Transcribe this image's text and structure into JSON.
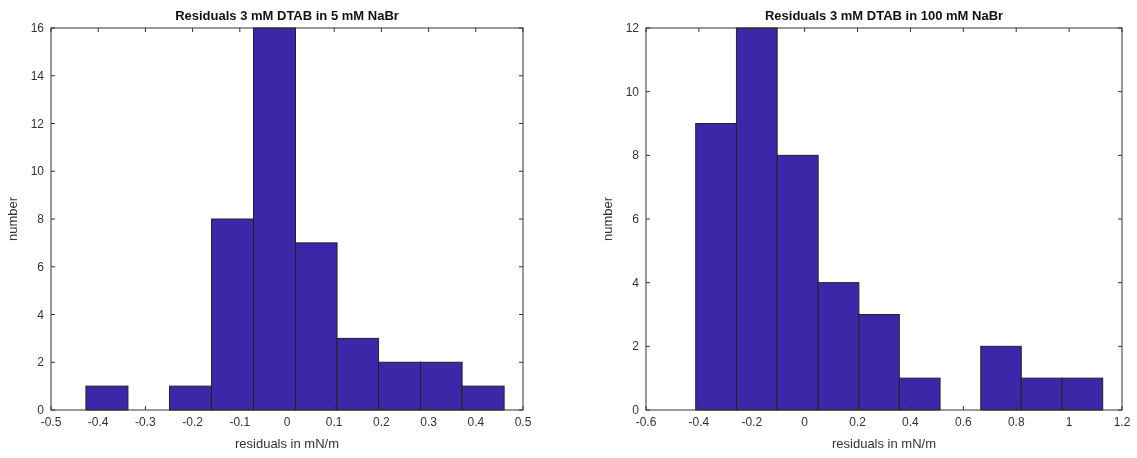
{
  "chart_data": [
    {
      "type": "histogram",
      "title": "Residuals 3 mM DTAB in 5 mM NaBr",
      "xlabel": "residuals in mN/m",
      "ylabel": "number",
      "color": "#3d27a8",
      "bins": [
        -0.426,
        -0.337,
        -0.249,
        -0.16,
        -0.071,
        0.018,
        0.106,
        0.194,
        0.283,
        0.371,
        0.46
      ],
      "values": [
        1,
        0,
        1,
        8,
        16,
        7,
        3,
        2,
        2,
        1
      ],
      "xlim": [
        -0.5,
        0.5
      ],
      "xticks": [
        -0.5,
        -0.4,
        -0.3,
        -0.2,
        -0.1,
        0,
        0.1,
        0.2,
        0.3,
        0.4,
        0.5
      ],
      "ylim": [
        0,
        16
      ],
      "yticks": [
        0,
        2,
        4,
        6,
        8,
        10,
        12,
        14,
        16
      ],
      "grid": false
    },
    {
      "type": "histogram",
      "title": "Residuals 3 mM DTAB in 100 mM NaBr",
      "xlabel": "residuals in mN/m",
      "ylabel": "number",
      "color": "#3d27a8",
      "bins": [
        -0.412,
        -0.258,
        -0.104,
        0.051,
        0.205,
        0.358,
        0.512,
        0.666,
        0.819,
        0.973,
        1.127
      ],
      "values": [
        9,
        12,
        8,
        4,
        3,
        1,
        0,
        2,
        1,
        1
      ],
      "xlim": [
        -0.6,
        1.2
      ],
      "xticks": [
        -0.6,
        -0.4,
        -0.2,
        0,
        0.2,
        0.4,
        0.6,
        0.8,
        1,
        1.2
      ],
      "ylim": [
        0,
        12
      ],
      "yticks": [
        0,
        2,
        4,
        6,
        8,
        10,
        12
      ],
      "grid": false
    }
  ]
}
